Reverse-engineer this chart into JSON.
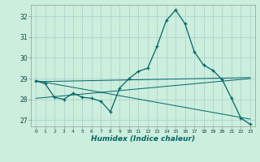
{
  "xlabel": "Humidex (Indice chaleur)",
  "background_color": "#cceedd",
  "grid_color": "#aacccc",
  "line_color": "#006666",
  "xlim": [
    -0.5,
    23.5
  ],
  "ylim": [
    26.7,
    32.55
  ],
  "yticks": [
    27,
    28,
    29,
    30,
    31,
    32
  ],
  "xticks": [
    0,
    1,
    2,
    3,
    4,
    5,
    6,
    7,
    8,
    9,
    10,
    11,
    12,
    13,
    14,
    15,
    16,
    17,
    18,
    19,
    20,
    21,
    22,
    23
  ],
  "series1_x": [
    0,
    1,
    2,
    3,
    4,
    5,
    6,
    7,
    8,
    9,
    10,
    11,
    12,
    13,
    14,
    15,
    16,
    17,
    18,
    19,
    20,
    21,
    22,
    23
  ],
  "series1_y": [
    28.9,
    28.75,
    28.1,
    28.0,
    28.3,
    28.1,
    28.05,
    27.9,
    27.4,
    28.55,
    29.0,
    29.35,
    29.5,
    30.55,
    31.8,
    32.3,
    31.65,
    30.3,
    29.65,
    29.4,
    28.95,
    28.05,
    27.1,
    26.8
  ],
  "series2_x": [
    0,
    23
  ],
  "series2_y": [
    28.9,
    27.05
  ],
  "series3_x": [
    0,
    23
  ],
  "series3_y": [
    28.85,
    29.05
  ],
  "series4_x": [
    0,
    23
  ],
  "series4_y": [
    28.05,
    29.0
  ]
}
